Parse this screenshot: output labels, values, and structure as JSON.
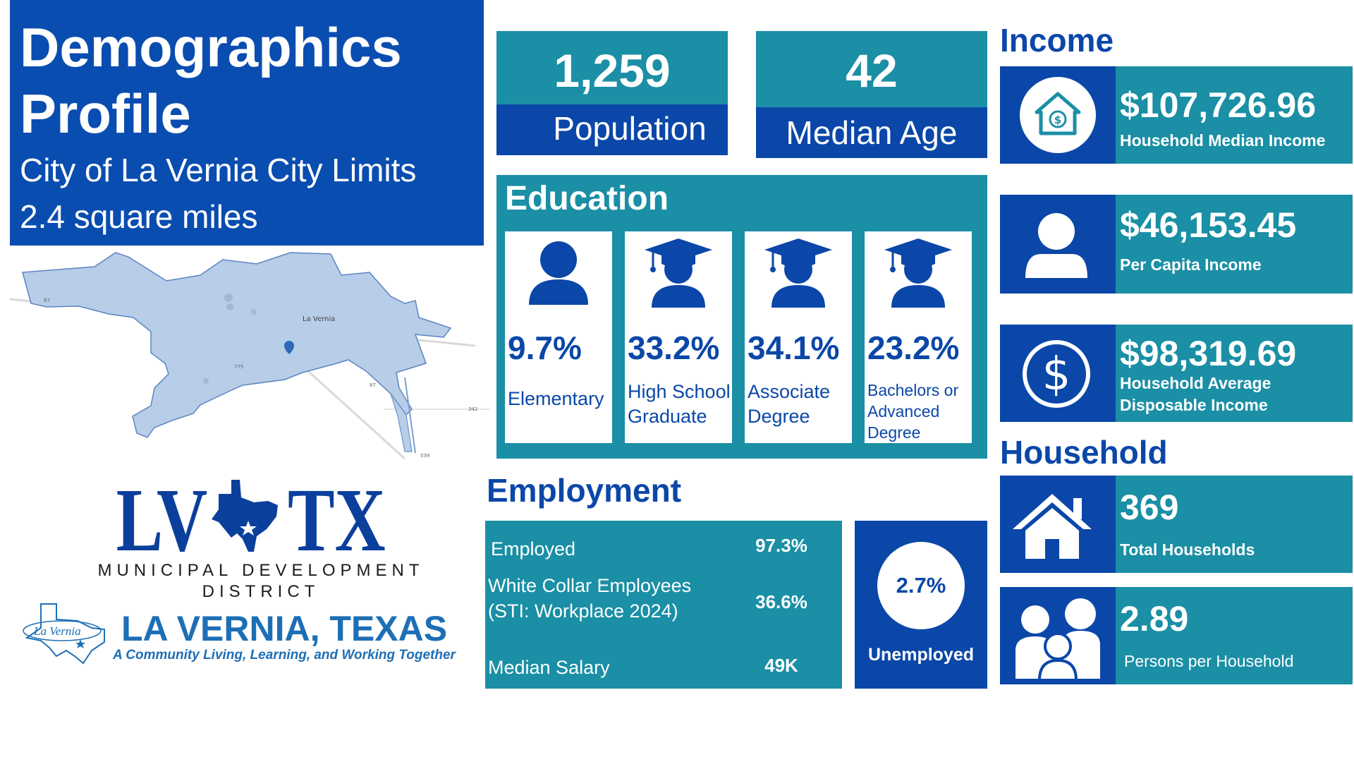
{
  "header": {
    "title_line1": "Demographics",
    "title_line2": "Profile",
    "subtitle_line1": "City of La Vernia City Limits",
    "subtitle_line2": "2.4 square miles"
  },
  "map": {
    "city_label": "La Vernia",
    "road_labels": [
      "87",
      "775",
      "87",
      "342",
      "539"
    ]
  },
  "logo": {
    "lvtx_left": "LV",
    "lvtx_right": "TX",
    "mdd_line1": "MUNICIPAL DEVELOPMENT",
    "mdd_line2": "DISTRICT",
    "seal_text": "La Vernia",
    "city_name": "LA VERNIA, TEXAS",
    "tagline": "A Community Living, Learning, and Working Together"
  },
  "stats": {
    "population_value": "1,259",
    "population_label": "Population",
    "median_age_value": "42",
    "median_age_label": "Median Age"
  },
  "education": {
    "title": "Education",
    "items": [
      {
        "pct": "9.7%",
        "label": "Elementary",
        "icon": "person-icon"
      },
      {
        "pct": "33.2%",
        "label": "High School Graduate",
        "icon": "graduate-icon"
      },
      {
        "pct": "34.1%",
        "label": "Associate Degree",
        "icon": "graduate-icon"
      },
      {
        "pct": "23.2%",
        "label": "Bachelors or Advanced Degree",
        "icon": "graduate-icon"
      }
    ]
  },
  "employment": {
    "title": "Employment",
    "rows": [
      {
        "label": "Employed",
        "value": "97.3%"
      },
      {
        "label": "White Collar Employees (STI: Workplace 2024)",
        "value": "36.6%"
      },
      {
        "label": "Median Salary",
        "value": "49K"
      }
    ],
    "unemployed_value": "2.7%",
    "unemployed_label": "Unemployed"
  },
  "income": {
    "title": "Income",
    "cards": [
      {
        "value": "$107,726.96",
        "label": "Household Median Income",
        "icon": "house-dollar-icon"
      },
      {
        "value": "$46,153.45",
        "label": "Per Capita Income",
        "icon": "person-icon"
      },
      {
        "value": "$98,319.69",
        "label": "Household Average Disposable Income",
        "icon": "dollar-circle-icon"
      }
    ]
  },
  "household": {
    "title": "Household",
    "cards": [
      {
        "value": "369",
        "label": "Total Households",
        "icon": "house-icon"
      },
      {
        "value": "2.89",
        "label": "Persons per Household",
        "icon": "family-icon"
      }
    ]
  },
  "colors": {
    "royal_blue": "#0a4db0",
    "teal": "#1a8fa5",
    "dark_blue": "#0b47a8",
    "map_fill": "#b7cde8"
  }
}
